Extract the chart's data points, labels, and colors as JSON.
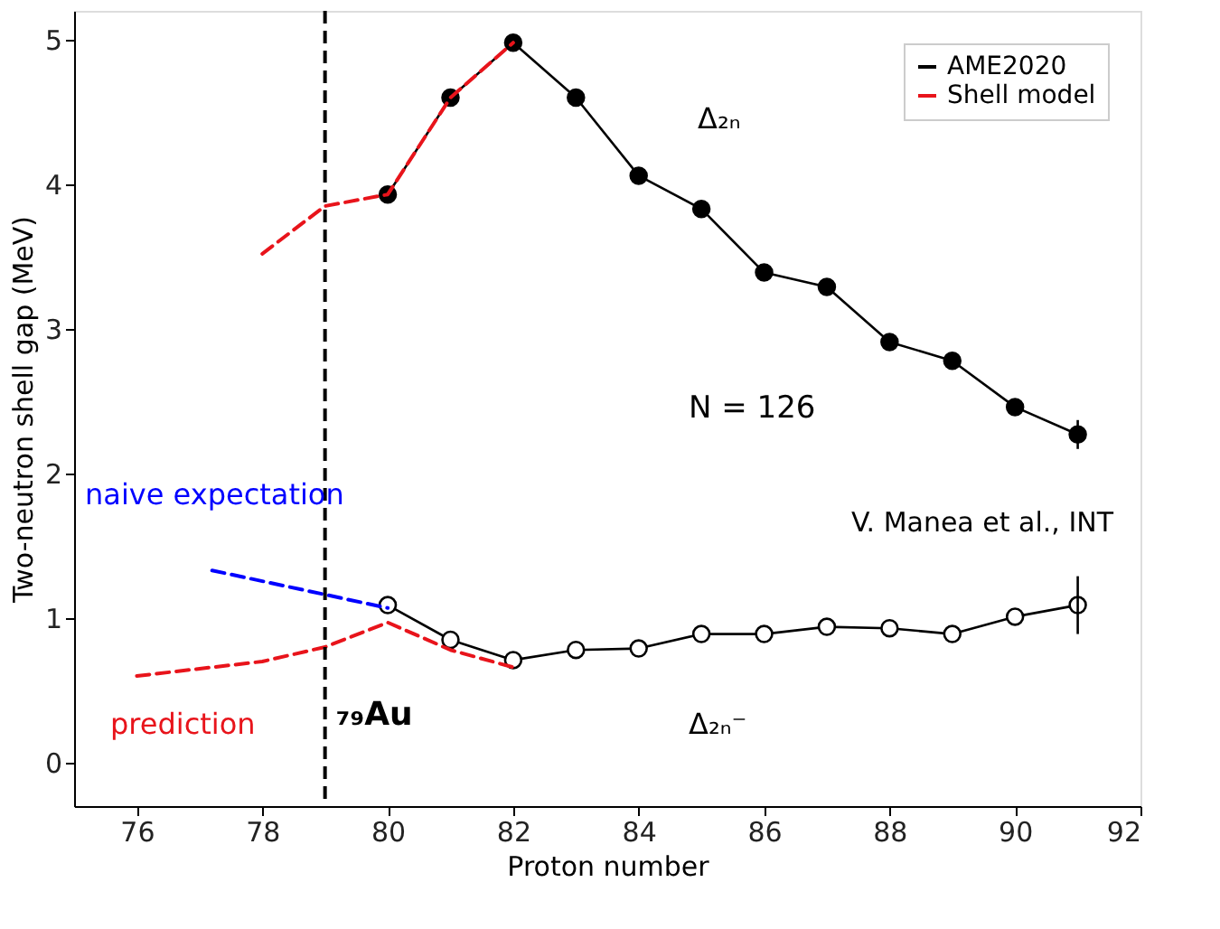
{
  "chart_data": {
    "type": "line",
    "xlabel": "Proton number",
    "ylabel": "Two-neutron shell gap (MeV)",
    "xlim": [
      75,
      92
    ],
    "ylim": [
      -0.3,
      5.2
    ],
    "xticks": [
      76,
      78,
      80,
      82,
      84,
      86,
      88,
      90,
      92
    ],
    "yticks": [
      0,
      1,
      2,
      3,
      4,
      5
    ],
    "legend": "top right",
    "grid": false,
    "series": [
      {
        "name": "AME2020",
        "color": "#000000",
        "marker": "circle",
        "line_style": "solid",
        "x": [
          80,
          81,
          82,
          83,
          84,
          85,
          86,
          87,
          88,
          89,
          90,
          91
        ],
        "values": [
          3.93,
          4.6,
          4.98,
          4.6,
          4.06,
          3.83,
          3.39,
          3.29,
          2.91,
          2.78,
          2.46,
          2.27
        ],
        "errors": [
          null,
          null,
          null,
          null,
          null,
          null,
          null,
          null,
          null,
          null,
          null,
          0.1
        ]
      },
      {
        "color": "#000000",
        "marker": "circle",
        "line_style": "solid",
        "x": [
          80,
          81,
          82,
          83,
          84,
          85,
          86,
          87,
          88,
          89,
          90,
          91
        ],
        "values": [
          1.09,
          0.85,
          0.71,
          0.78,
          0.79,
          0.89,
          0.89,
          0.94,
          0.93,
          0.89,
          1.01,
          1.09
        ],
        "errors": [
          null,
          null,
          null,
          null,
          null,
          null,
          null,
          null,
          null,
          null,
          null,
          0.2
        ]
      },
      {
        "name": "Shell model",
        "color": "#e8141b",
        "marker": "none",
        "line_style": "dashed",
        "x": [
          78,
          79,
          80,
          81,
          82
        ],
        "values": [
          3.52,
          3.85,
          3.93,
          4.6,
          4.98
        ]
      },
      {
        "color": "#e8141b",
        "marker": "none",
        "line_style": "dashed",
        "x": [
          76,
          78,
          79,
          80,
          81,
          82
        ],
        "values": [
          0.6,
          0.7,
          0.8,
          0.97,
          0.78,
          0.66
        ]
      },
      {
        "color": "#0000ff",
        "marker": "none",
        "line_style": "dashed",
        "x": [
          77.2,
          80
        ],
        "values": [
          1.33,
          1.07
        ]
      }
    ],
    "ref_lines": [
      {
        "axis": "x",
        "value": 79,
        "label": "₇₉Au",
        "color": "#000000",
        "line_style": "dashed"
      }
    ],
    "annotations": [
      "Δ₂ₙ",
      "Δ₂ₙ⁻",
      "naive expectation",
      "prediction",
      "N = 126",
      "V. Manea et al., INT"
    ]
  }
}
